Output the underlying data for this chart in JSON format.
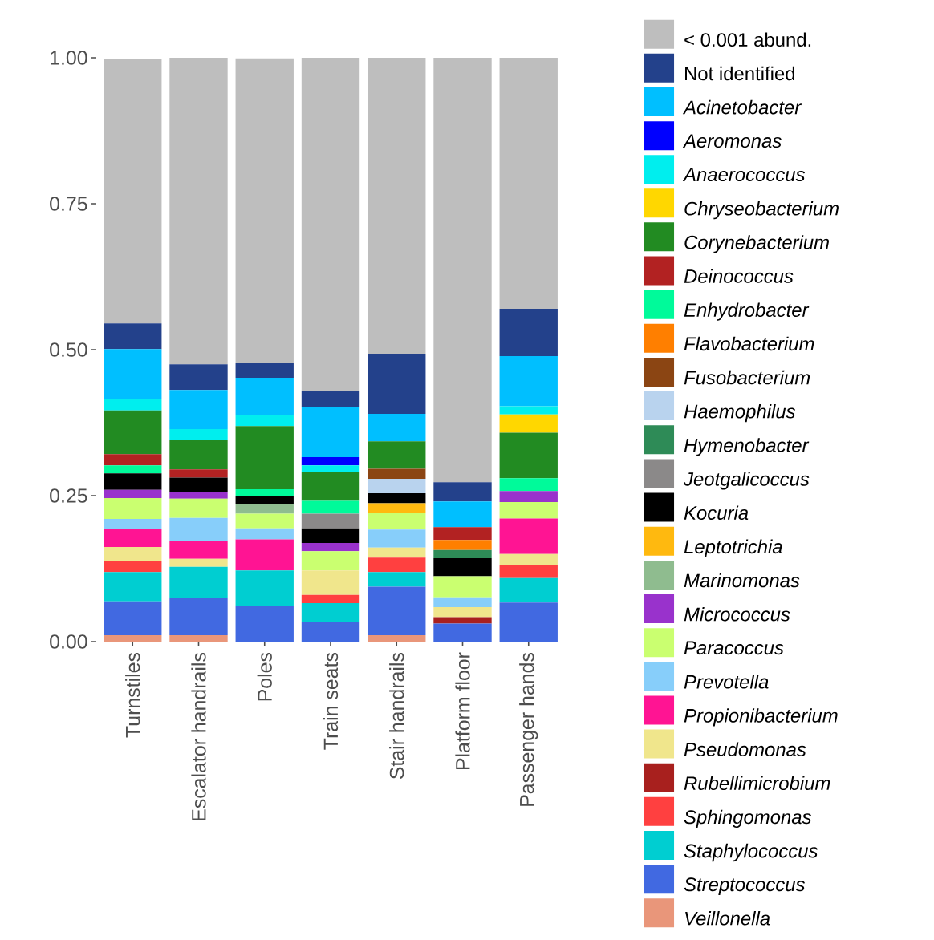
{
  "chart_data": {
    "type": "bar",
    "stacked": true,
    "legend": "right",
    "categories": [
      "Turnstiles",
      "Escalator handrails",
      "Poles",
      "Train seats",
      "Stair handrails",
      "Platform floor",
      "Passenger hands"
    ],
    "ylim": [
      0,
      1
    ],
    "yticks": [
      {
        "value": 0,
        "label": "0.00"
      },
      {
        "value": 0.25,
        "label": "0.25"
      },
      {
        "value": 0.5,
        "label": "0.50"
      },
      {
        "value": 0.75,
        "label": "0.75"
      },
      {
        "value": 1,
        "label": "1.00"
      }
    ],
    "series": [
      {
        "name": "*Veillonella*",
        "color": "#e9967a",
        "values": [
          0.011,
          0.011,
          0,
          0,
          0.011,
          0,
          0
        ]
      },
      {
        "name": "*Streptococcus*",
        "color": "#4169e1",
        "values": [
          0.058,
          0.064,
          0.061,
          0.033,
          0.083,
          0.031,
          0.067
        ]
      },
      {
        "name": "*Staphylococcus*",
        "color": "#00ced1",
        "values": [
          0.05,
          0.053,
          0.061,
          0.033,
          0.025,
          0,
          0.042
        ]
      },
      {
        "name": "*Sphingomonas*",
        "color": "#ff4040",
        "values": [
          0.019,
          0,
          0,
          0.014,
          0.025,
          0,
          0.022
        ]
      },
      {
        "name": "*Rubellimicrobium*",
        "color": "#a8201e",
        "values": [
          0,
          0,
          0,
          0,
          0,
          0.011,
          0
        ]
      },
      {
        "name": "*Pseudomonas*",
        "color": "#f0e68c",
        "values": [
          0.024,
          0.014,
          0,
          0.042,
          0.017,
          0.017,
          0.019
        ]
      },
      {
        "name": "*Propionibacterium*",
        "color": "#ff1493",
        "values": [
          0.031,
          0.031,
          0.053,
          0,
          0,
          0,
          0.061
        ]
      },
      {
        "name": "*Prevotella*",
        "color": "#87cefa",
        "values": [
          0.017,
          0.039,
          0.019,
          0,
          0.031,
          0.017,
          0
        ]
      },
      {
        "name": "*Paracoccus*",
        "color": "#caff70",
        "values": [
          0.036,
          0.033,
          0.025,
          0.033,
          0.028,
          0.036,
          0.028
        ]
      },
      {
        "name": "*Micrococcus*",
        "color": "#9932cc",
        "values": [
          0.014,
          0.011,
          0,
          0.014,
          0,
          0,
          0.019
        ]
      },
      {
        "name": "*Marinomonas*",
        "color": "#8fbc8f",
        "values": [
          0,
          0,
          0.017,
          0,
          0,
          0,
          0
        ]
      },
      {
        "name": "*Leptotrichia*",
        "color": "#ffb90f",
        "values": [
          0,
          0,
          0,
          0,
          0.017,
          0,
          0
        ]
      },
      {
        "name": "*Kocuria*",
        "color": "#000000",
        "values": [
          0.028,
          0.025,
          0.014,
          0.025,
          0.017,
          0.031,
          0
        ]
      },
      {
        "name": "*Jeotgalicoccus*",
        "color": "#8b8989",
        "values": [
          0,
          0,
          0,
          0.025,
          0,
          0,
          0
        ]
      },
      {
        "name": "*Hymenobacter*",
        "color": "#2e8b57",
        "values": [
          0,
          0,
          0,
          0,
          0,
          0.014,
          0
        ]
      },
      {
        "name": "*Haemophilus*",
        "color": "#b9d3ee",
        "values": [
          0,
          0,
          0,
          0,
          0.025,
          0,
          0
        ]
      },
      {
        "name": "*Fusobacterium*",
        "color": "#8b4513",
        "values": [
          0,
          0,
          0,
          0,
          0.017,
          0,
          0
        ]
      },
      {
        "name": "*Flavobacterium*",
        "color": "#ff7f00",
        "values": [
          0,
          0,
          0,
          0,
          0,
          0.017,
          0
        ]
      },
      {
        "name": "*Enhydrobacter*",
        "color": "#00fa9a",
        "values": [
          0.014,
          0,
          0.011,
          0.022,
          0,
          0,
          0.022
        ]
      },
      {
        "name": "*Deinococcus*",
        "color": "#b22222",
        "values": [
          0.019,
          0.014,
          0,
          0,
          0,
          0.022,
          0
        ]
      },
      {
        "name": "*Corynebacterium*",
        "color": "#228b22",
        "values": [
          0.075,
          0.05,
          0.108,
          0.05,
          0.047,
          0,
          0.078
        ]
      },
      {
        "name": "*Chryseobacterium*",
        "color": "#ffd700",
        "values": [
          0,
          0,
          0,
          0,
          0,
          0,
          0.031
        ]
      },
      {
        "name": "*Anaerococcus*",
        "color": "#00eeee",
        "values": [
          0.019,
          0.019,
          0.019,
          0.011,
          0,
          0,
          0.014
        ]
      },
      {
        "name": "*Aeromonas*",
        "color": "#0000ff",
        "values": [
          0,
          0,
          0,
          0.014,
          0,
          0,
          0
        ]
      },
      {
        "name": "*Acinetobacter*",
        "color": "#00bfff",
        "values": [
          0.086,
          0.067,
          0.064,
          0.086,
          0.047,
          0.044,
          0.086
        ]
      },
      {
        "name": "Not identified",
        "color": "#23418b",
        "values": [
          0.044,
          0.044,
          0.025,
          0.028,
          0.103,
          0.033,
          0.081
        ]
      },
      {
        "name": "< 0.001 abund.",
        "color": "#bebebe",
        "values": [
          0.453,
          0.525,
          0.522,
          0.572,
          0.508,
          0.728,
          0.431
        ]
      }
    ]
  }
}
